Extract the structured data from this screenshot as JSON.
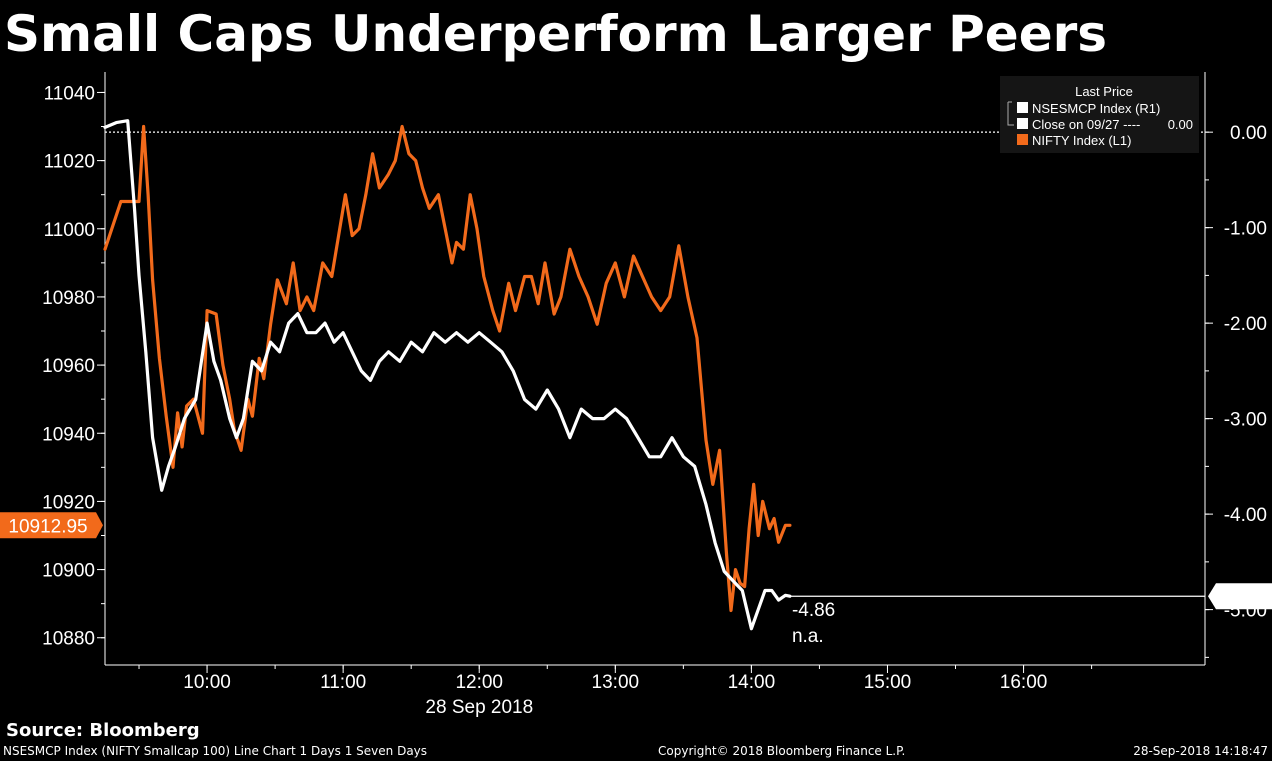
{
  "title": "Small Caps Underperform Larger Peers",
  "source": "Source: Bloomberg",
  "footer": {
    "left": "NSESMCP Index (NIFTY Smallcap 100) Line Chart 1 Days 1 Seven Days",
    "center": "Copyright© 2018 Bloomberg Finance L.P.",
    "right": "28-Sep-2018 14:18:47"
  },
  "colors": {
    "background": "#000000",
    "nifty": "#f26a1b",
    "smallcap": "#ffffff",
    "axis": "#ffffff"
  },
  "legend": {
    "title": "Last Price",
    "entries": [
      {
        "label": "NSESMCP Index  (R1)",
        "value": "",
        "color": "#ffffff"
      },
      {
        "label": "Close on 09/27 ----",
        "value": "0.00",
        "color": "#ffffff"
      },
      {
        "label": "NIFTY Index  (L1)",
        "value": "",
        "color": "#f26a1b"
      }
    ]
  },
  "chart_data": {
    "type": "line",
    "xlabel": "28 Sep 2018",
    "x_ticks": [
      "10:00",
      "11:00",
      "12:00",
      "13:00",
      "14:00",
      "15:00",
      "16:00"
    ],
    "x_range": [
      "09:15",
      "17:20"
    ],
    "left_axis": {
      "ticks": [
        11040,
        11020,
        11000,
        10980,
        10960,
        10940,
        10920,
        10900,
        10880
      ],
      "range": [
        10872,
        11046
      ]
    },
    "right_axis": {
      "ticks": [
        "0.00",
        "-1.00",
        "-2.00",
        "-3.00",
        "-4.00",
        "-5.00"
      ],
      "range": [
        -5.58,
        0.63
      ]
    },
    "reference_line": {
      "name": "Close on 09/27",
      "value": 0.0,
      "axis": "right"
    },
    "last_values": {
      "nifty_label": "10912.95",
      "smallcap_label": "-4.86",
      "smallcap_text": "-4.86",
      "na_text": "n.a."
    },
    "series": [
      {
        "name": "NIFTY Index (L1)",
        "axis": "left",
        "color": "#f26a1b",
        "x": [
          "09:15",
          "09:22",
          "09:26",
          "09:30",
          "09:32",
          "09:34",
          "09:36",
          "09:39",
          "09:42",
          "09:45",
          "09:47",
          "09:49",
          "09:51",
          "09:54",
          "09:58",
          "10:00",
          "10:04",
          "10:07",
          "10:10",
          "10:12",
          "10:15",
          "10:18",
          "10:20",
          "10:23",
          "10:25",
          "10:28",
          "10:31",
          "10:35",
          "10:38",
          "10:41",
          "10:44",
          "10:47",
          "10:51",
          "10:55",
          "10:58",
          "11:01",
          "11:04",
          "11:07",
          "11:10",
          "11:13",
          "11:16",
          "11:20",
          "11:23",
          "11:26",
          "11:29",
          "11:32",
          "11:35",
          "11:38",
          "11:42",
          "11:45",
          "11:48",
          "11:50",
          "11:53",
          "11:56",
          "11:59",
          "12:02",
          "12:06",
          "12:09",
          "12:13",
          "12:16",
          "12:20",
          "12:23",
          "12:26",
          "12:29",
          "12:33",
          "12:36",
          "12:40",
          "12:44",
          "12:48",
          "12:52",
          "12:56",
          "13:00",
          "13:04",
          "13:08",
          "13:12",
          "13:16",
          "13:20",
          "13:24",
          "13:28",
          "13:32",
          "13:36",
          "13:40",
          "13:43",
          "13:46",
          "13:49",
          "13:51",
          "13:53",
          "13:55",
          "13:57",
          "13:59",
          "14:01",
          "14:03",
          "14:05",
          "14:08",
          "14:10",
          "14:12",
          "14:15",
          "14:17"
        ],
        "values": [
          10994,
          11008,
          11008,
          11008,
          11030,
          11010,
          10985,
          10962,
          10945,
          10930,
          10946,
          10936,
          10948,
          10950,
          10940,
          10976,
          10975,
          10960,
          10950,
          10941,
          10935,
          10950,
          10945,
          10962,
          10956,
          10972,
          10985,
          10978,
          10990,
          10976,
          10980,
          10976,
          10990,
          10986,
          10998,
          11010,
          10998,
          11000,
          11010,
          11022,
          11012,
          11016,
          11020,
          11030,
          11022,
          11020,
          11012,
          11006,
          11010,
          11000,
          10990,
          10996,
          10994,
          11010,
          11000,
          10986,
          10976,
          10970,
          10984,
          10976,
          10986,
          10986,
          10978,
          10990,
          10975,
          10980,
          10994,
          10986,
          10980,
          10972,
          10984,
          10990,
          10980,
          10992,
          10986,
          10980,
          10976,
          10980,
          10995,
          10980,
          10968,
          10938,
          10925,
          10935,
          10905,
          10888,
          10900,
          10896,
          10895,
          10912,
          10925,
          10910,
          10920,
          10912,
          10915,
          10908,
          10913,
          10913
        ]
      },
      {
        "name": "NSESMCP Index (R1)",
        "axis": "right",
        "color": "#ffffff",
        "x": [
          "09:15",
          "09:20",
          "09:25",
          "09:28",
          "09:30",
          "09:33",
          "09:36",
          "09:40",
          "09:43",
          "09:46",
          "09:50",
          "09:55",
          "10:00",
          "10:03",
          "10:06",
          "10:10",
          "10:13",
          "10:16",
          "10:20",
          "10:24",
          "10:28",
          "10:32",
          "10:36",
          "10:40",
          "10:44",
          "10:48",
          "10:52",
          "10:56",
          "11:00",
          "11:04",
          "11:08",
          "11:12",
          "11:16",
          "11:20",
          "11:25",
          "11:30",
          "11:35",
          "11:40",
          "11:45",
          "11:50",
          "11:55",
          "12:00",
          "12:05",
          "12:10",
          "12:15",
          "12:20",
          "12:25",
          "12:30",
          "12:35",
          "12:40",
          "12:45",
          "12:50",
          "12:55",
          "13:00",
          "13:05",
          "13:10",
          "13:15",
          "13:20",
          "13:25",
          "13:30",
          "13:35",
          "13:40",
          "13:44",
          "13:48",
          "13:52",
          "13:56",
          "14:00",
          "14:03",
          "14:06",
          "14:09",
          "14:12",
          "14:15",
          "14:17"
        ],
        "values": [
          0.05,
          0.1,
          0.12,
          -0.8,
          -1.5,
          -2.3,
          -3.2,
          -3.75,
          -3.5,
          -3.3,
          -3.0,
          -2.8,
          -2.0,
          -2.4,
          -2.6,
          -3.0,
          -3.2,
          -3.0,
          -2.4,
          -2.5,
          -2.2,
          -2.3,
          -2.0,
          -1.9,
          -2.1,
          -2.1,
          -2.0,
          -2.2,
          -2.1,
          -2.3,
          -2.5,
          -2.6,
          -2.4,
          -2.3,
          -2.4,
          -2.2,
          -2.3,
          -2.1,
          -2.2,
          -2.1,
          -2.2,
          -2.1,
          -2.2,
          -2.3,
          -2.5,
          -2.8,
          -2.9,
          -2.7,
          -2.9,
          -3.2,
          -2.9,
          -3.0,
          -3.0,
          -2.9,
          -3.0,
          -3.2,
          -3.4,
          -3.4,
          -3.2,
          -3.4,
          -3.5,
          -3.9,
          -4.3,
          -4.6,
          -4.7,
          -4.8,
          -5.2,
          -5.0,
          -4.8,
          -4.8,
          -4.9,
          -4.85,
          -4.86
        ]
      }
    ]
  }
}
